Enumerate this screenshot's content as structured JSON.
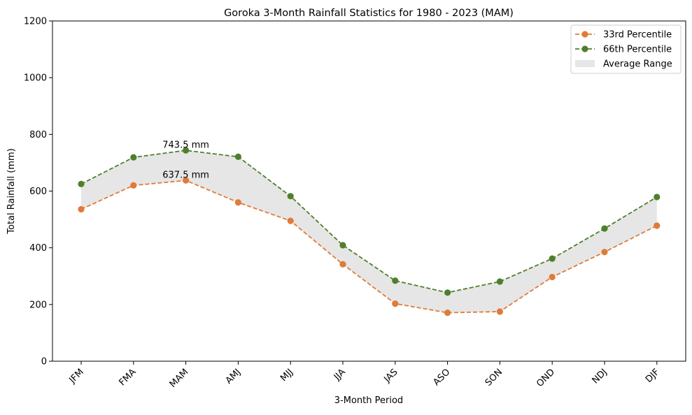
{
  "chart_data": {
    "type": "line",
    "title": "Goroka 3-Month Rainfall Statistics for 1980 - 2023 (MAM)",
    "xlabel": "3-Month Period",
    "ylabel": "Total Rainfall (mm)",
    "categories": [
      "JFM",
      "FMA",
      "MAM",
      "AMJ",
      "MJJ",
      "JJA",
      "JAS",
      "ASO",
      "SON",
      "OND",
      "NDJ",
      "DJF"
    ],
    "ylim": [
      0,
      1200
    ],
    "yticks": [
      0,
      200,
      400,
      600,
      800,
      1000,
      1200
    ],
    "series": [
      {
        "name": "33rd Percentile",
        "color": "#e07b39",
        "values": [
          536,
          620,
          637.5,
          560,
          495,
          342,
          203,
          171,
          175,
          297,
          385,
          478
        ]
      },
      {
        "name": "66th Percentile",
        "color": "#4f7f2c",
        "values": [
          625,
          719,
          743.5,
          721,
          582,
          409,
          284,
          242,
          281,
          362,
          468,
          579
        ]
      }
    ],
    "band": {
      "name": "Average Range",
      "color": "#e6e6e6"
    },
    "annotations": [
      {
        "category": "MAM",
        "value": 743.5,
        "text": "743.5 mm"
      },
      {
        "category": "MAM",
        "value": 637.5,
        "text": "637.5 mm"
      }
    ],
    "grid": false,
    "legend_position": "top-right"
  }
}
